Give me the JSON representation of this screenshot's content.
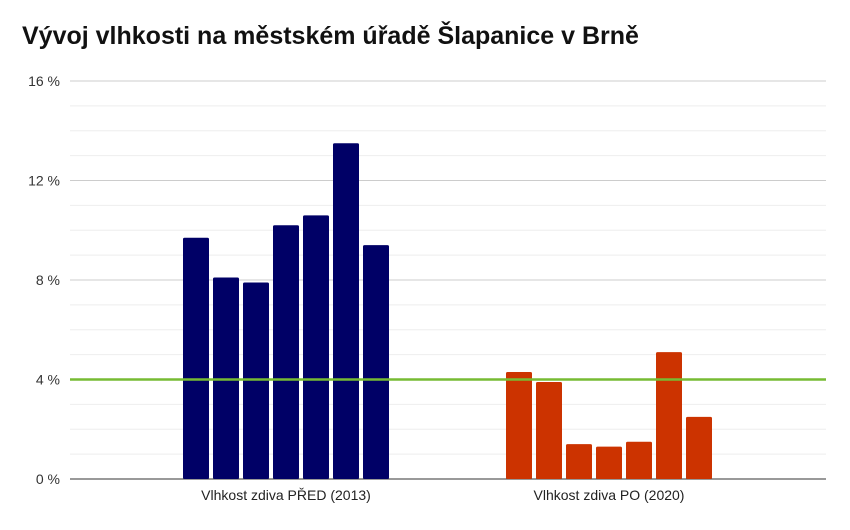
{
  "chart_data": {
    "type": "bar",
    "title": "Vývoj vlhkosti na městském úřadě Šlapanice v Brně",
    "xlabel": "",
    "ylabel": "",
    "ylim": [
      0,
      16
    ],
    "y_ticks": [
      0,
      4,
      8,
      12,
      16
    ],
    "y_tick_labels": [
      "0 %",
      "4 %",
      "8 %",
      "12 %",
      "16 %"
    ],
    "minor_grid_step": 1,
    "grid": true,
    "legend": "none",
    "groups": [
      {
        "label": "Vlhkost zdiva PŘED (2013)",
        "color": "#000066",
        "values": [
          9.7,
          8.1,
          7.9,
          10.2,
          10.6,
          13.5,
          9.4
        ]
      },
      {
        "label": "Vlhkost zdiva PO (2020)",
        "color": "#cc3300",
        "values": [
          4.3,
          3.9,
          1.4,
          1.3,
          1.5,
          5.1,
          2.5
        ]
      }
    ],
    "reference_line": {
      "value": 4,
      "color": "#77bb33"
    }
  }
}
